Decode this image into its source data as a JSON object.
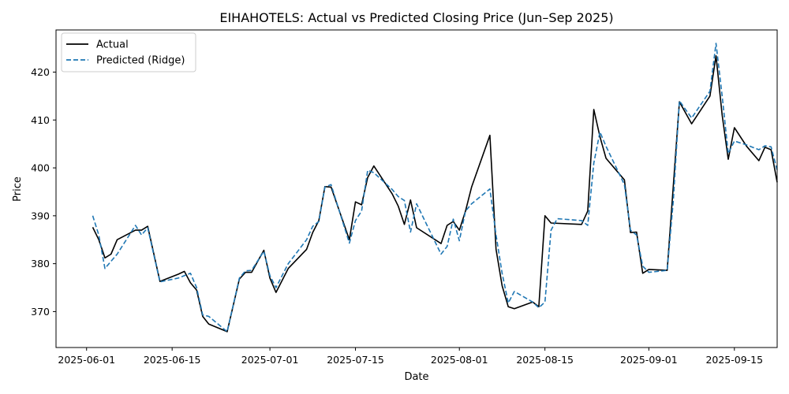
{
  "chart_data": {
    "type": "line",
    "title": "EIHAHOTELS: Actual vs Predicted Closing Price (Jun–Sep 2025)",
    "xlabel": "Date",
    "ylabel": "Price",
    "xlim": [
      "2025-05-27",
      "2025-09-22"
    ],
    "ylim": [
      362.5,
      428.8
    ],
    "x_ticks": [
      "2025-06-01",
      "2025-06-15",
      "2025-07-01",
      "2025-07-15",
      "2025-08-01",
      "2025-08-15",
      "2025-09-01",
      "2025-09-15"
    ],
    "y_ticks": [
      370,
      380,
      390,
      400,
      410,
      420
    ],
    "grid": false,
    "legend_position": "top-left",
    "series": [
      {
        "name": "Actual",
        "color": "#000000",
        "style": "solid",
        "points": [
          [
            "2025-06-02",
            387.6
          ],
          [
            "2025-06-03",
            385.0
          ],
          [
            "2025-06-04",
            381.2
          ],
          [
            "2025-06-05",
            382.0
          ],
          [
            "2025-06-06",
            385.0
          ],
          [
            "2025-06-09",
            387.0
          ],
          [
            "2025-06-10",
            387.0
          ],
          [
            "2025-06-11",
            387.8
          ],
          [
            "2025-06-13",
            376.3
          ],
          [
            "2025-06-16",
            377.8
          ],
          [
            "2025-06-17",
            378.4
          ],
          [
            "2025-06-18",
            376.0
          ],
          [
            "2025-06-19",
            374.5
          ],
          [
            "2025-06-20",
            369.0
          ],
          [
            "2025-06-21",
            367.4
          ],
          [
            "2025-06-24",
            365.8
          ],
          [
            "2025-06-26",
            376.8
          ],
          [
            "2025-06-27",
            378.2
          ],
          [
            "2025-06-28",
            378.2
          ],
          [
            "2025-06-30",
            382.8
          ],
          [
            "2025-07-01",
            377.0
          ],
          [
            "2025-07-02",
            374.0
          ],
          [
            "2025-07-04",
            379.0
          ],
          [
            "2025-07-07",
            383.0
          ],
          [
            "2025-07-08",
            386.5
          ],
          [
            "2025-07-09",
            389.0
          ],
          [
            "2025-07-10",
            396.1
          ],
          [
            "2025-07-11",
            396.0
          ],
          [
            "2025-07-14",
            385.0
          ],
          [
            "2025-07-15",
            392.9
          ],
          [
            "2025-07-16",
            392.3
          ],
          [
            "2025-07-17",
            398.0
          ],
          [
            "2025-07-18",
            400.4
          ],
          [
            "2025-07-21",
            394.6
          ],
          [
            "2025-07-22",
            392.0
          ],
          [
            "2025-07-23",
            388.2
          ],
          [
            "2025-07-24",
            393.3
          ],
          [
            "2025-07-25",
            387.5
          ],
          [
            "2025-07-29",
            384.2
          ],
          [
            "2025-07-30",
            388.0
          ],
          [
            "2025-07-31",
            388.8
          ],
          [
            "2025-08-01",
            387.0
          ],
          [
            "2025-08-02",
            391.0
          ],
          [
            "2025-08-03",
            396.0
          ],
          [
            "2025-08-06",
            406.8
          ],
          [
            "2025-08-07",
            383.0
          ],
          [
            "2025-08-08",
            375.4
          ],
          [
            "2025-08-09",
            371.0
          ],
          [
            "2025-08-10",
            370.6
          ],
          [
            "2025-08-13",
            372.0
          ],
          [
            "2025-08-14",
            371.0
          ],
          [
            "2025-08-15",
            390.0
          ],
          [
            "2025-08-16",
            388.5
          ],
          [
            "2025-08-21",
            388.2
          ],
          [
            "2025-08-22",
            391.0
          ],
          [
            "2025-08-23",
            412.2
          ],
          [
            "2025-08-24",
            406.5
          ],
          [
            "2025-08-25",
            402.0
          ],
          [
            "2025-08-28",
            397.5
          ],
          [
            "2025-08-29",
            386.5
          ],
          [
            "2025-08-30",
            386.6
          ],
          [
            "2025-08-31",
            378.0
          ],
          [
            "2025-09-01",
            378.8
          ],
          [
            "2025-09-04",
            378.6
          ],
          [
            "2025-09-06",
            413.8
          ],
          [
            "2025-09-08",
            409.2
          ],
          [
            "2025-09-11",
            415.0
          ],
          [
            "2025-09-12",
            423.4
          ],
          [
            "2025-09-13",
            411.0
          ],
          [
            "2025-09-14",
            401.8
          ],
          [
            "2025-09-15",
            408.4
          ],
          [
            "2025-09-17",
            404.5
          ],
          [
            "2025-09-19",
            401.5
          ],
          [
            "2025-09-20",
            404.3
          ],
          [
            "2025-09-21",
            403.8
          ],
          [
            "2025-09-22",
            397.0
          ]
        ]
      },
      {
        "name": "Predicted (Ridge)",
        "color": "#1f77b4",
        "style": "dashed",
        "points": [
          [
            "2025-06-02",
            390.0
          ],
          [
            "2025-06-03",
            386.0
          ],
          [
            "2025-06-04",
            379.0
          ],
          [
            "2025-06-05",
            380.5
          ],
          [
            "2025-06-06",
            382.0
          ],
          [
            "2025-06-09",
            388.0
          ],
          [
            "2025-06-10",
            386.0
          ],
          [
            "2025-06-11",
            387.5
          ],
          [
            "2025-06-13",
            376.2
          ],
          [
            "2025-06-16",
            377.0
          ],
          [
            "2025-06-17",
            377.5
          ],
          [
            "2025-06-18",
            378.0
          ],
          [
            "2025-06-19",
            375.0
          ],
          [
            "2025-06-20",
            369.3
          ],
          [
            "2025-06-21",
            369.0
          ],
          [
            "2025-06-24",
            365.8
          ],
          [
            "2025-06-26",
            377.0
          ],
          [
            "2025-06-27",
            378.5
          ],
          [
            "2025-06-28",
            378.6
          ],
          [
            "2025-06-30",
            382.6
          ],
          [
            "2025-07-01",
            377.5
          ],
          [
            "2025-07-02",
            375.0
          ],
          [
            "2025-07-04",
            380.0
          ],
          [
            "2025-07-07",
            385.0
          ],
          [
            "2025-07-08",
            387.8
          ],
          [
            "2025-07-09",
            388.8
          ],
          [
            "2025-07-10",
            396.0
          ],
          [
            "2025-07-11",
            396.5
          ],
          [
            "2025-07-14",
            384.3
          ],
          [
            "2025-07-15",
            389.0
          ],
          [
            "2025-07-16",
            391.0
          ],
          [
            "2025-07-17",
            399.5
          ],
          [
            "2025-07-18",
            399.0
          ],
          [
            "2025-07-21",
            395.5
          ],
          [
            "2025-07-22",
            394.0
          ],
          [
            "2025-07-23",
            393.2
          ],
          [
            "2025-07-24",
            386.6
          ],
          [
            "2025-07-25",
            392.5
          ],
          [
            "2025-07-29",
            382.0
          ],
          [
            "2025-07-30",
            383.6
          ],
          [
            "2025-07-31",
            389.3
          ],
          [
            "2025-08-01",
            384.8
          ],
          [
            "2025-08-02",
            391.0
          ],
          [
            "2025-08-03",
            392.5
          ],
          [
            "2025-08-06",
            395.6
          ],
          [
            "2025-08-07",
            386.0
          ],
          [
            "2025-08-08",
            378.0
          ],
          [
            "2025-08-09",
            371.8
          ],
          [
            "2025-08-10",
            374.2
          ],
          [
            "2025-08-13",
            372.0
          ],
          [
            "2025-08-14",
            370.8
          ],
          [
            "2025-08-15",
            372.0
          ],
          [
            "2025-08-16",
            387.0
          ],
          [
            "2025-08-17",
            389.4
          ],
          [
            "2025-08-21",
            389.0
          ],
          [
            "2025-08-22",
            388.0
          ],
          [
            "2025-08-23",
            401.0
          ],
          [
            "2025-08-24",
            407.5
          ],
          [
            "2025-08-25",
            404.5
          ],
          [
            "2025-08-28",
            396.5
          ],
          [
            "2025-08-29",
            387.0
          ],
          [
            "2025-08-30",
            386.0
          ],
          [
            "2025-08-31",
            379.5
          ],
          [
            "2025-09-01",
            378.2
          ],
          [
            "2025-09-04",
            378.6
          ],
          [
            "2025-09-05",
            393.0
          ],
          [
            "2025-09-06",
            414.0
          ],
          [
            "2025-09-08",
            410.4
          ],
          [
            "2025-09-11",
            416.0
          ],
          [
            "2025-09-12",
            426.0
          ],
          [
            "2025-09-13",
            415.0
          ],
          [
            "2025-09-14",
            403.0
          ],
          [
            "2025-09-15",
            405.6
          ],
          [
            "2025-09-17",
            404.8
          ],
          [
            "2025-09-19",
            403.8
          ],
          [
            "2025-09-20",
            404.6
          ],
          [
            "2025-09-21",
            404.4
          ],
          [
            "2025-09-22",
            399.5
          ]
        ]
      }
    ]
  }
}
